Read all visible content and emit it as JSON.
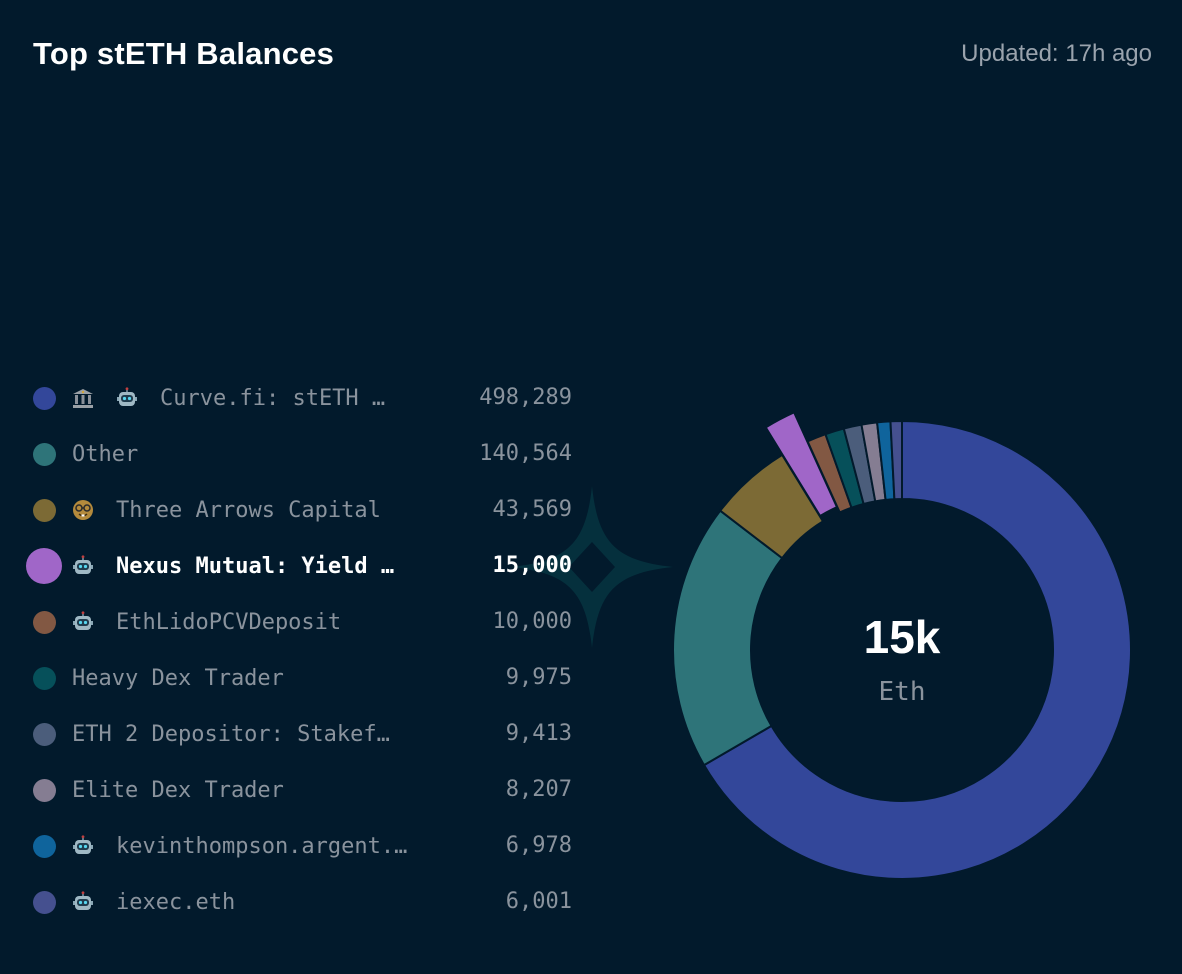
{
  "header": {
    "title": "Top stETH Balances",
    "updated": "Updated: 17h ago"
  },
  "center": {
    "value": "15k",
    "unit": "Eth"
  },
  "colors": {
    "background": "#021a2c",
    "text_active": "#ffffff",
    "text_muted": "#8a939d"
  },
  "legend": [
    {
      "icons": [
        "bank-icon",
        "robot-icon"
      ],
      "label": "Curve.fi: stETH …",
      "value": "498,289",
      "color": "#33479a",
      "active": false
    },
    {
      "icons": [],
      "label": "Other",
      "value": "140,564",
      "color": "#2e7479",
      "active": false
    },
    {
      "icons": [
        "nerd-face-icon"
      ],
      "label": "Three Arrows Capital",
      "value": "43,569",
      "color": "#7c6a35",
      "active": false
    },
    {
      "icons": [
        "robot-icon"
      ],
      "label": "Nexus Mutual: Yield …",
      "value": "15,000",
      "color": "#a066c8",
      "active": true
    },
    {
      "icons": [
        "robot-icon"
      ],
      "label": "EthLidoPCVDeposit",
      "value": "10,000",
      "color": "#825843",
      "active": false
    },
    {
      "icons": [],
      "label": "Heavy Dex Trader",
      "value": "9,975",
      "color": "#06505a",
      "active": false
    },
    {
      "icons": [],
      "label": "ETH 2 Depositor: Stakefi…",
      "value": "9,413",
      "color": "#4b5d7b",
      "active": false
    },
    {
      "icons": [],
      "label": "Elite Dex Trader",
      "value": "8,207",
      "color": "#857d92",
      "active": false
    },
    {
      "icons": [
        "robot-icon"
      ],
      "label": "kevinthompson.argent.…",
      "value": "6,978",
      "color": "#0f649c",
      "active": false
    },
    {
      "icons": [
        "robot-icon"
      ],
      "label": "iexec.eth",
      "value": "6,001",
      "color": "#45508f",
      "active": false
    }
  ],
  "chart_data": {
    "type": "pie",
    "title": "Top stETH Balances",
    "unit": "Eth",
    "center_label": "15k",
    "highlighted": "Nexus Mutual: Yield …",
    "categories": [
      "Curve.fi: stETH …",
      "Other",
      "Three Arrows Capital",
      "Nexus Mutual: Yield …",
      "EthLidoPCVDeposit",
      "Heavy Dex Trader",
      "ETH 2 Depositor: Stakefi…",
      "Elite Dex Trader",
      "kevinthompson.argent.…",
      "iexec.eth"
    ],
    "values": [
      498289,
      140564,
      43569,
      15000,
      10000,
      9975,
      9413,
      8207,
      6978,
      6001
    ],
    "order": [
      "Curve.fi: stETH …",
      "Other",
      "Three Arrows Capital",
      "Nexus Mutual: Yield …",
      "EthLidoPCVDeposit",
      "Heavy Dex Trader",
      "ETH 2 Depositor: Stakefi…",
      "Elite Dex Trader",
      "kevinthompson.argent.…",
      "iexec.eth"
    ],
    "legend_position": "left"
  }
}
